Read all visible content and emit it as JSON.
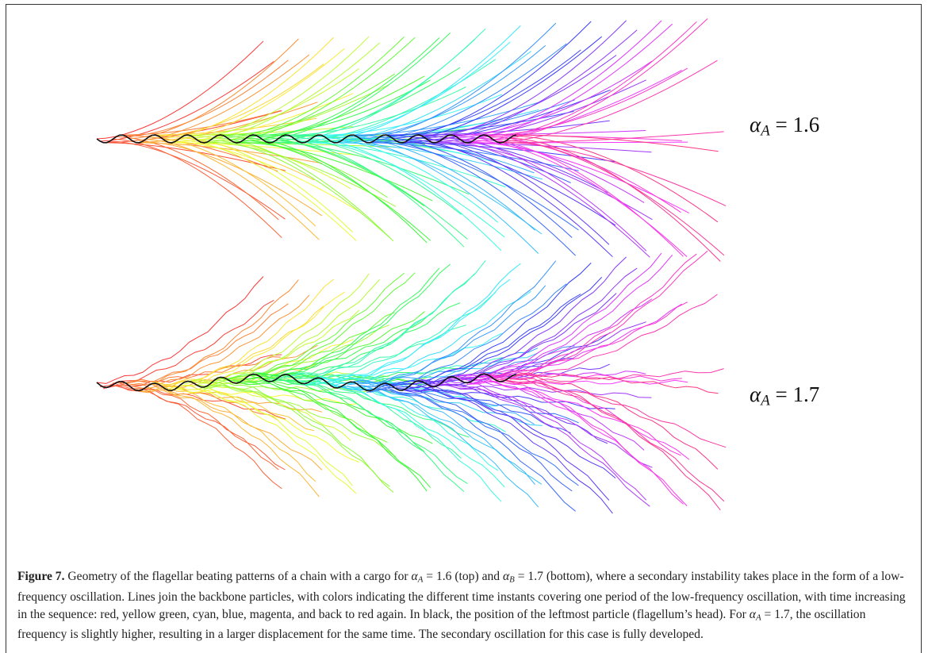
{
  "figure": {
    "panels": [
      {
        "symbol": "α",
        "subscript": "A",
        "text": "= 1.6"
      },
      {
        "symbol": "α",
        "subscript": "A",
        "text": "= 1.7"
      }
    ],
    "caption": {
      "label": "Figure 7.",
      "parts": [
        " Geometry of the flagellar beating patterns of a chain with a cargo for ",
        {
          "symbol": "α",
          "subscript": "A"
        },
        " = 1.6 (top) and ",
        {
          "symbol": "α",
          "subscript": "B"
        },
        " = 1.7 (bottom), where a secondary instability takes place in the form of a low-frequency oscillation. Lines join the backbone particles, with colors indicating the different time instants covering one period of the low-frequency oscillation, with time increasing in the sequence: red, yellow green, cyan, blue, magenta, and back to red again. In black, the position of the leftmost particle (flagellum’s head). For ",
        {
          "symbol": "α",
          "subscript": "A"
        },
        " = 1.7, the oscillation frequency is slightly higher, resulting in a larger displacement for the same time. The secondary oscillation for this case is fully developed."
      ]
    }
  }
}
